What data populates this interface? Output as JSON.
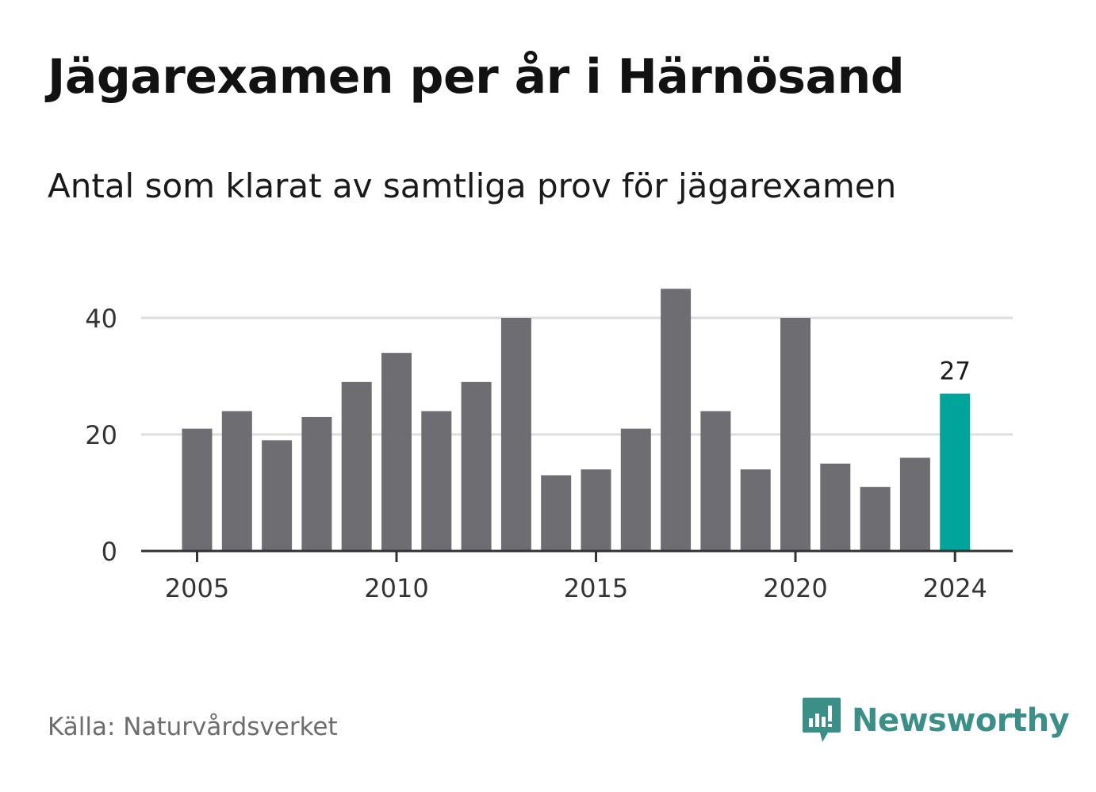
{
  "title": "Jägarexamen per år i Härnösand",
  "subtitle": "Antal som klarat av samtliga prov för jägarexamen",
  "source": "Källa: Naturvårdsverket",
  "brand": {
    "name": "Newsworthy",
    "icon": "newsworthy-logo-icon",
    "color": "#3a8f86"
  },
  "colors": {
    "bar": "#6e6d72",
    "highlight": "#00a49a",
    "grid": "#dddddd",
    "axis": "#333333",
    "text": "#333333"
  },
  "chart_data": {
    "type": "bar",
    "categories": [
      2005,
      2006,
      2007,
      2008,
      2009,
      2010,
      2011,
      2012,
      2013,
      2014,
      2015,
      2016,
      2017,
      2018,
      2019,
      2020,
      2021,
      2022,
      2023,
      2024
    ],
    "values": [
      21,
      24,
      19,
      23,
      29,
      34,
      24,
      29,
      40,
      13,
      14,
      21,
      45,
      24,
      14,
      40,
      15,
      11,
      16,
      27
    ],
    "x_tick_labels": [
      "2005",
      "2010",
      "2015",
      "2020",
      "2024"
    ],
    "y_ticks": [
      0,
      20,
      40
    ],
    "y_tick_labels": [
      "0",
      "20",
      "40"
    ],
    "ylim": [
      0,
      45
    ],
    "highlight": {
      "category": 2024,
      "label": "27"
    },
    "grid": true,
    "xlabel": "",
    "ylabel": ""
  }
}
